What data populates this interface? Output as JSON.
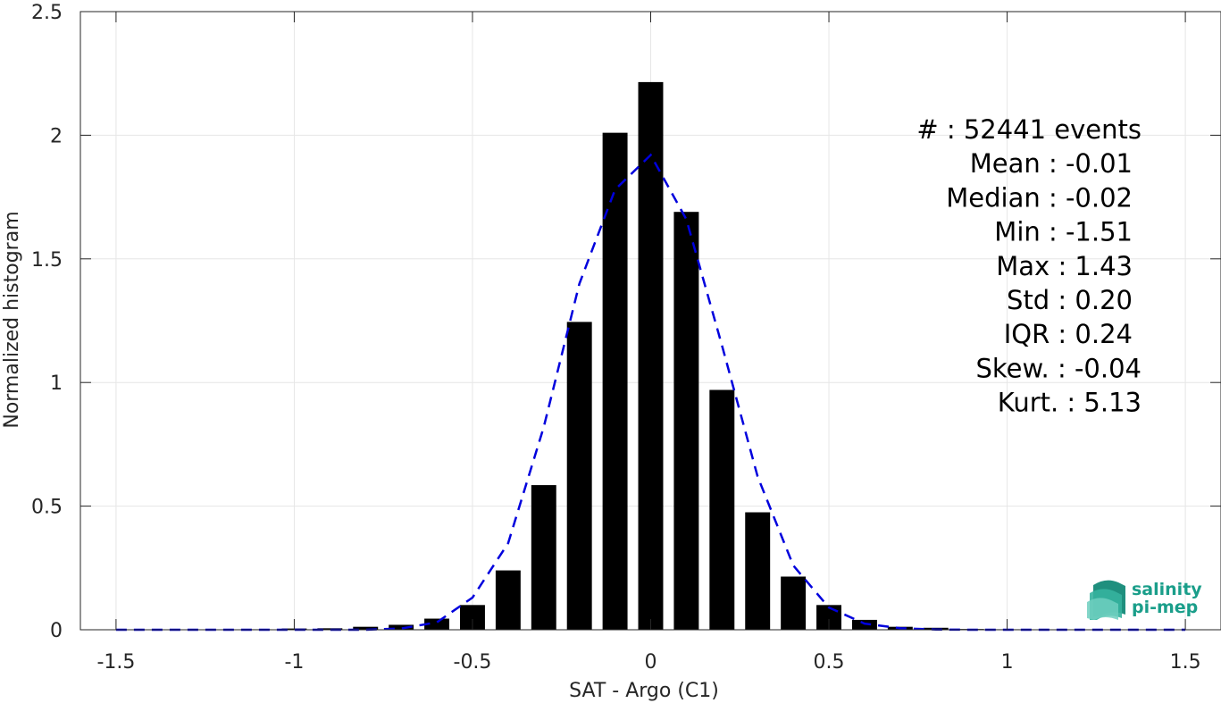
{
  "chart_data": {
    "type": "bar",
    "xlabel": "SAT - Argo (C1)",
    "ylabel": "Normalized histogram",
    "xlim": [
      -1.6,
      1.6
    ],
    "ylim": [
      0,
      2.5
    ],
    "xticks": [
      -1.5,
      -1,
      -0.5,
      0,
      0.5,
      1,
      1.5
    ],
    "xtick_labels": [
      "-1.5",
      "-1",
      "-0.5",
      "0",
      "0.5",
      "1",
      "1.5"
    ],
    "yticks": [
      0,
      0.5,
      1,
      1.5,
      2,
      2.5
    ],
    "ytick_labels": [
      "0",
      "0.5",
      "1",
      "1.5",
      "2",
      "2.5"
    ],
    "grid": true,
    "bar_width": 0.07,
    "bar_color": "#000000",
    "histogram": {
      "x": [
        -1.5,
        -1.4,
        -1.3,
        -1.2,
        -1.1,
        -1.0,
        -0.9,
        -0.8,
        -0.7,
        -0.6,
        -0.5,
        -0.4,
        -0.3,
        -0.2,
        -0.1,
        0.0,
        0.1,
        0.2,
        0.3,
        0.4,
        0.5,
        0.6,
        0.7,
        0.8,
        0.9,
        1.0,
        1.1,
        1.2,
        1.3,
        1.4,
        1.5
      ],
      "values": [
        0.001,
        0.001,
        0.001,
        0.001,
        0.002,
        0.005,
        0.006,
        0.012,
        0.02,
        0.045,
        0.1,
        0.24,
        0.585,
        1.245,
        2.01,
        2.215,
        1.69,
        0.97,
        0.475,
        0.215,
        0.1,
        0.04,
        0.012,
        0.008,
        0.003,
        0.002,
        0.001,
        0.001,
        0.001,
        0.001,
        0.001
      ]
    },
    "fit_curve": {
      "style": "dashed",
      "color": "#0000dd",
      "x": [
        -1.5,
        -1.4,
        -1.3,
        -1.2,
        -1.1,
        -1.0,
        -0.9,
        -0.8,
        -0.7,
        -0.6,
        -0.5,
        -0.4,
        -0.3,
        -0.2,
        -0.1,
        0.0,
        0.1,
        0.2,
        0.3,
        0.4,
        0.5,
        0.6,
        0.7,
        0.8,
        0.9,
        1.0,
        1.1,
        1.2,
        1.3,
        1.4,
        1.5
      ],
      "values": [
        0,
        0,
        0,
        0,
        0,
        0,
        0,
        0,
        0.005,
        0.03,
        0.13,
        0.35,
        0.82,
        1.4,
        1.78,
        1.92,
        1.66,
        1.15,
        0.62,
        0.26,
        0.09,
        0.025,
        0.006,
        0.001,
        0,
        0,
        0,
        0,
        0,
        0,
        0
      ]
    },
    "annotations": [
      "#  : 52441 events",
      "Mean : -0.01",
      "Median : -0.02",
      "Min : -1.51",
      "Max : 1.43",
      "Std : 0.20",
      "IQR : 0.24",
      "Skew. : -0.04",
      "Kurt. : 5.13"
    ]
  },
  "logo": {
    "line1": "salinity",
    "line2": "pi-mep",
    "color": "#1a9e8a"
  }
}
